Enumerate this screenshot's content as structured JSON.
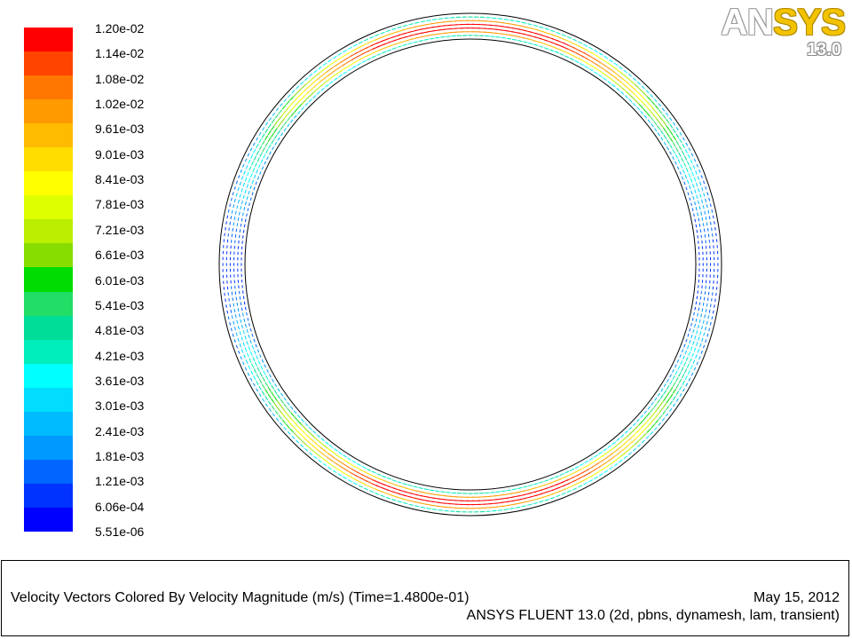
{
  "logo": {
    "brand_part1": "AN",
    "brand_part2": "SYS",
    "version": "13.0"
  },
  "footer": {
    "title": "Velocity Vectors Colored By Velocity Magnitude (m/s)  (Time=1.4800e-01)",
    "date": "May 15, 2012",
    "solver": "ANSYS FLUENT 13.0 (2d, pbns, dynamesh, lam, transient)"
  },
  "chart_data": {
    "type": "vector_field",
    "colorbar": {
      "labels": [
        "1.20e-02",
        "1.14e-02",
        "1.08e-02",
        "1.02e-02",
        "9.61e-03",
        "9.01e-03",
        "8.41e-03",
        "7.81e-03",
        "7.21e-03",
        "6.61e-03",
        "6.01e-03",
        "5.41e-03",
        "4.81e-03",
        "4.21e-03",
        "3.61e-03",
        "3.01e-03",
        "2.41e-03",
        "1.81e-03",
        "1.21e-03",
        "6.06e-04",
        "5.51e-06"
      ],
      "colors": [
        "#ff0000",
        "#ff4400",
        "#ff7700",
        "#ff9a00",
        "#ffbb00",
        "#ffdd00",
        "#ffff00",
        "#ddff00",
        "#bbee00",
        "#88dd00",
        "#00dd00",
        "#22dd66",
        "#00dd99",
        "#00eebb",
        "#00ffff",
        "#00ddff",
        "#00bbff",
        "#0099ff",
        "#0066ff",
        "#0033ff",
        "#0000ff"
      ]
    }
  }
}
